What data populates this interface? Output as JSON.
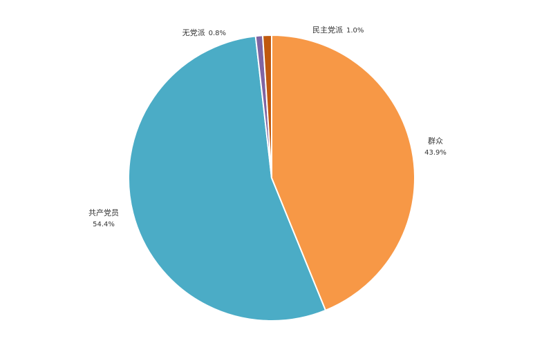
{
  "chart_data": {
    "type": "pie",
    "start": "top",
    "direction": "clockwise",
    "slices": [
      {
        "label": "群众",
        "value": 43.9,
        "pct_text": "43.9%",
        "color": "#F79846"
      },
      {
        "label": "共产党员",
        "value": 54.4,
        "pct_text": "54.4%",
        "color": "#4BACC6"
      },
      {
        "label": "无党派",
        "value": 0.8,
        "pct_text": "0.8%",
        "color": "#8064A2"
      },
      {
        "label": "民主党派",
        "value": 1.0,
        "pct_text": "1.0%",
        "color": "#C0590F"
      }
    ]
  }
}
